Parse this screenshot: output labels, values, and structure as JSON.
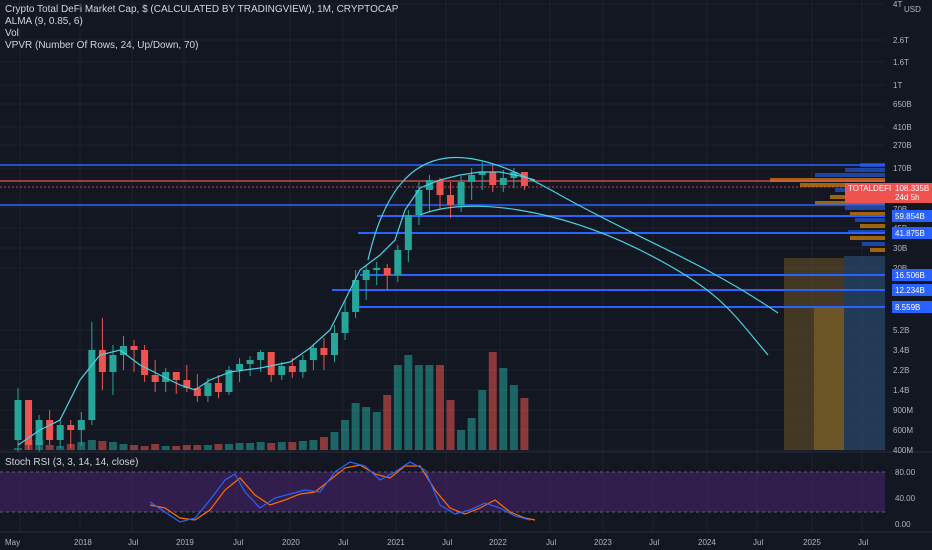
{
  "legend": {
    "title": "Crypto Total DeFi Market Cap, $ (CALCULATED BY TRADINGVIEW), 1M, CRYPTOCAP",
    "alma": "ALMA (9, 0.85, 6)",
    "vol": "Vol",
    "vpvr": "VPVR (Number Of Rows, 24, Up/Down, 70)"
  },
  "rsi_label": "Stoch RSI (3, 3, 14, 14, close)",
  "currency": "USD",
  "colors": {
    "bg": "#131722",
    "up": "#26a69a",
    "down": "#ef5350",
    "alma": "#4dd0e1",
    "level": "#2962ff",
    "rsi_k": "#2962ff",
    "rsi_d": "#ff6d00",
    "rsi_band": "#4a2470"
  },
  "chart_data": {
    "type": "candlestick",
    "price_axis": [
      "4T",
      "2.6T",
      "1.6T",
      "1T",
      "650B",
      "410B",
      "270B",
      "170B",
      "70B",
      "45B",
      "30B",
      "20B",
      "5.2B",
      "3.4B",
      "2.2B",
      "1.4B",
      "900M",
      "600M",
      "400M"
    ],
    "time_axis": [
      "May",
      "2018",
      "Jul",
      "2019",
      "Jul",
      "2020",
      "Jul",
      "2021",
      "Jul",
      "2022",
      "Jul",
      "2023",
      "Jul",
      "2024",
      "Jul",
      "2025",
      "Jul"
    ],
    "price_tags": [
      {
        "text": "108.335B",
        "kind": "last"
      },
      {
        "text": "24d 5h",
        "kind": "countdown"
      },
      {
        "text": "TOTALDEFI",
        "kind": "symbol"
      },
      {
        "text": "59.854B",
        "kind": "level"
      },
      {
        "text": "41.875B",
        "kind": "level"
      },
      {
        "text": "16.506B",
        "kind": "level"
      },
      {
        "text": "12.234B",
        "kind": "level"
      },
      {
        "text": "8.559B",
        "kind": "level"
      }
    ],
    "rsi_axis": [
      "80.00",
      "40.00",
      "0.00"
    ]
  }
}
